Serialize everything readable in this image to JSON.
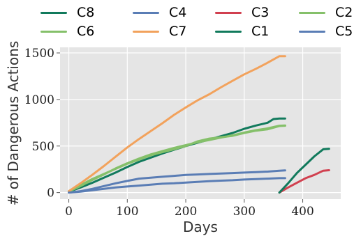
{
  "chart_data": {
    "type": "line",
    "title": "",
    "xlabel": "Days",
    "ylabel": "# of Dangerous Actions",
    "xlim": [
      -15,
      465
    ],
    "ylim": [
      -70,
      1560
    ],
    "xticks": [
      0,
      100,
      200,
      300,
      400
    ],
    "yticks": [
      0,
      500,
      1000,
      1500
    ],
    "grid": true,
    "legend_position": "top",
    "background": "#e5e5e5",
    "legend_order": [
      "C8",
      "C4",
      "C3",
      "C2",
      "C6",
      "C7",
      "C1",
      "C5"
    ],
    "series": [
      {
        "name": "C8",
        "color": "#117a5c",
        "x": [
          0,
          20,
          40,
          60,
          80,
          100,
          120,
          140,
          160,
          180,
          200,
          220,
          240,
          260,
          280,
          300,
          320,
          340,
          350,
          360,
          370
        ],
        "y": [
          10,
          55,
          105,
          160,
          215,
          275,
          330,
          375,
          420,
          460,
          500,
          535,
          570,
          605,
          640,
          685,
          720,
          750,
          790,
          795,
          795
        ]
      },
      {
        "name": "C4",
        "color": "#5a7db5",
        "x": [
          0,
          20,
          40,
          60,
          80,
          100,
          120,
          140,
          160,
          180,
          200,
          220,
          240,
          260,
          280,
          300,
          320,
          340,
          360,
          370
        ],
        "y": [
          0,
          15,
          40,
          70,
          100,
          125,
          150,
          160,
          170,
          180,
          190,
          195,
          200,
          205,
          210,
          215,
          220,
          225,
          235,
          238
        ]
      },
      {
        "name": "C3",
        "color": "#d1404f",
        "x": [
          360,
          375,
          390,
          405,
          420,
          435,
          445
        ],
        "y": [
          0,
          55,
          105,
          155,
          190,
          235,
          240
        ]
      },
      {
        "name": "C2",
        "color": "#85c06a",
        "x": [
          0,
          20,
          40,
          60,
          80,
          100,
          120,
          140,
          160,
          180,
          200,
          220,
          240,
          260,
          280,
          300,
          320,
          340,
          360,
          370
        ],
        "y": [
          15,
          80,
          145,
          200,
          255,
          310,
          355,
          400,
          435,
          465,
          500,
          550,
          580,
          595,
          610,
          640,
          665,
          680,
          715,
          718
        ]
      },
      {
        "name": "C6",
        "color": "#85c06a",
        "x": [
          0,
          20,
          40,
          60,
          80,
          100,
          120,
          140,
          160,
          180,
          200,
          220,
          240,
          260,
          280,
          300,
          320,
          340,
          360,
          370
        ],
        "y": [
          10,
          70,
          135,
          195,
          260,
          315,
          365,
          410,
          445,
          480,
          510,
          540,
          565,
          590,
          615,
          645,
          670,
          690,
          718,
          720
        ]
      },
      {
        "name": "C7",
        "color": "#f2a25c",
        "x": [
          0,
          20,
          40,
          60,
          80,
          100,
          120,
          140,
          160,
          180,
          200,
          220,
          240,
          260,
          280,
          300,
          320,
          340,
          360,
          370
        ],
        "y": [
          15,
          100,
          190,
          285,
          385,
          485,
          575,
          660,
          745,
          835,
          915,
          990,
          1055,
          1130,
          1200,
          1270,
          1330,
          1395,
          1465,
          1465
        ]
      },
      {
        "name": "C1",
        "color": "#117a5c",
        "x": [
          360,
          375,
          390,
          405,
          420,
          435,
          445
        ],
        "y": [
          0,
          100,
          210,
          300,
          390,
          465,
          470
        ]
      },
      {
        "name": "C5",
        "color": "#5a7db5",
        "x": [
          0,
          20,
          40,
          60,
          80,
          100,
          120,
          140,
          160,
          180,
          200,
          220,
          240,
          260,
          280,
          300,
          320,
          340,
          360,
          370
        ],
        "y": [
          0,
          10,
          25,
          40,
          55,
          65,
          75,
          85,
          95,
          100,
          108,
          115,
          122,
          128,
          133,
          140,
          145,
          150,
          155,
          155
        ]
      }
    ]
  }
}
